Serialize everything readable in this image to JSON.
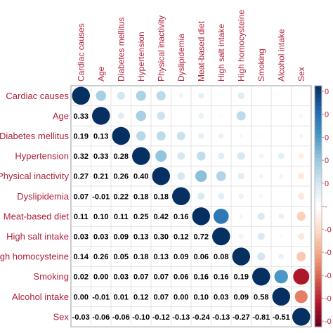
{
  "chart_data": {
    "type": "heatmap",
    "variables": [
      "Cardiac causes",
      "Age",
      "Diabetes mellitus",
      "Hypertension",
      "Physical inactivity",
      "Dyslipidemia",
      "Meat-based diet",
      "High salt intake",
      "High homocysteine",
      "Smoking",
      "Alcohol intake",
      "Sex"
    ],
    "row_labels": [
      "Cardiac causes",
      "Age",
      "Diabetes mellitus",
      "Hypertension",
      "Physical inactivity",
      "Dyslipidemia",
      "Meat-based diet",
      "High salt intake",
      "igh homocysteine",
      "Smoking",
      "Alcohol intake",
      "Sex"
    ],
    "lower_values": [
      [],
      [
        "0.33"
      ],
      [
        "0.19",
        "0.13"
      ],
      [
        "0.32",
        "0.33",
        "0.28"
      ],
      [
        "0.27",
        "0.21",
        "0.26",
        "0.40"
      ],
      [
        "0.07",
        "-0.01",
        "0.22",
        "0.18",
        "0.18"
      ],
      [
        "0.11",
        "0.10",
        "0.11",
        "0.25",
        "0.42",
        "0.16"
      ],
      [
        "0.03",
        "0.03",
        "0.09",
        "0.13",
        "0.30",
        "0.12",
        "0.72"
      ],
      [
        "0.14",
        "0.26",
        "0.05",
        "0.18",
        "0.13",
        "0.09",
        "0.06",
        "0.08"
      ],
      [
        "0.02",
        "0.00",
        "0.03",
        "0.07",
        "0.07",
        "0.06",
        "0.16",
        "0.16",
        "0.19"
      ],
      [
        "0.00",
        "-0.01",
        "0.01",
        "0.12",
        "0.07",
        "0.00",
        "0.10",
        "0.03",
        "0.09",
        "0.58"
      ],
      [
        "-0.03",
        "-0.06",
        "-0.06",
        "-0.10",
        "-0.12",
        "-0.13",
        "-0.24",
        "-0.13",
        "-0.27",
        "-0.81",
        "-0.51"
      ]
    ],
    "diagonal": 1,
    "upper_glyph": "circle",
    "colorbar_ticks": [
      "0",
      "0",
      "0",
      "0",
      "0",
      "-",
      "-0",
      "-0",
      "-0",
      "-0",
      "-0"
    ],
    "colors": {
      "positive_max": "#053061",
      "negative_max": "#67001f",
      "label": "#b0223a",
      "frame": "#999999"
    }
  }
}
